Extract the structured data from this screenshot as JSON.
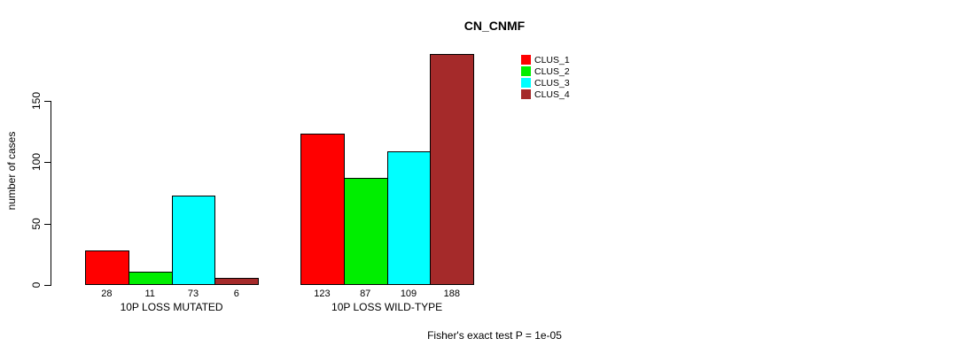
{
  "chart_data": {
    "type": "bar",
    "title": "CN_CNMF",
    "ylabel": "number of cases",
    "ylim": [
      0,
      150
    ],
    "yticks": [
      0,
      50,
      100,
      150
    ],
    "grid": false,
    "legend_position": "top-right",
    "categories": [
      "10P LOSS MUTATED",
      "10P LOSS WILD-TYPE"
    ],
    "series": [
      {
        "name": "CLUS_1",
        "color": "#FF0000",
        "values": [
          28,
          123
        ]
      },
      {
        "name": "CLUS_2",
        "color": "#00EE00",
        "values": [
          11,
          87
        ]
      },
      {
        "name": "CLUS_3",
        "color": "#00FFFF",
        "values": [
          73,
          109
        ]
      },
      {
        "name": "CLUS_4",
        "color": "#A52A2A",
        "values": [
          6,
          188
        ]
      }
    ],
    "bar_value_labels": [
      [
        "28",
        "11",
        "73",
        "6"
      ],
      [
        "123",
        "87",
        "109",
        "188"
      ]
    ],
    "annotation": "Fisher's exact test P = 1e-05"
  }
}
